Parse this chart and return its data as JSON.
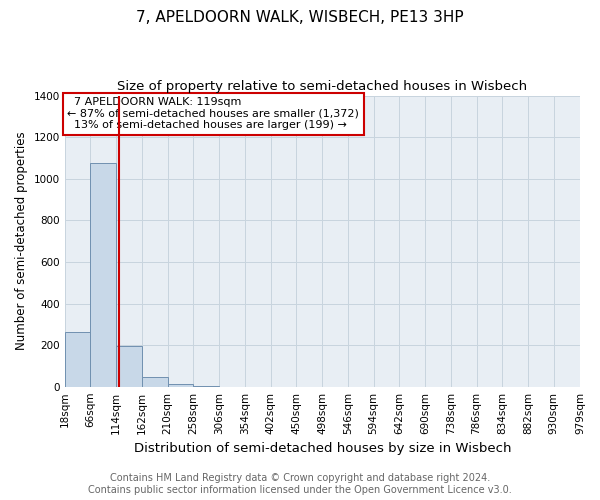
{
  "title": "7, APELDOORN WALK, WISBECH, PE13 3HP",
  "subtitle": "Size of property relative to semi-detached houses in Wisbech",
  "xlabel": "Distribution of semi-detached houses by size in Wisbech",
  "ylabel": "Number of semi-detached properties",
  "footnote1": "Contains HM Land Registry data © Crown copyright and database right 2024.",
  "footnote2": "Contains public sector information licensed under the Open Government Licence v3.0.",
  "bin_edges": [
    18,
    66,
    114,
    162,
    210,
    258,
    306,
    354,
    402,
    450,
    498,
    546,
    594,
    642,
    690,
    738,
    786,
    834,
    882,
    930,
    979
  ],
  "bar_heights": [
    265,
    1075,
    195,
    45,
    12,
    2,
    0,
    0,
    0,
    0,
    0,
    0,
    0,
    0,
    0,
    0,
    0,
    0,
    0,
    0
  ],
  "bar_color": "#c8d8e8",
  "bar_edge_color": "#7090b0",
  "property_size": 119,
  "property_label": "7 APELDOORN WALK: 119sqm",
  "pct_smaller": 87,
  "count_smaller": 1372,
  "pct_larger": 13,
  "count_larger": 199,
  "vline_color": "#cc0000",
  "annotation_box_color": "#cc0000",
  "ylim": [
    0,
    1400
  ],
  "yticks": [
    0,
    200,
    400,
    600,
    800,
    1000,
    1200,
    1400
  ],
  "background_color": "#e8eef4",
  "grid_color": "#c8d4de",
  "title_fontsize": 11,
  "subtitle_fontsize": 9.5,
  "xlabel_fontsize": 9.5,
  "ylabel_fontsize": 8.5,
  "tick_fontsize": 7.5,
  "footnote_fontsize": 7,
  "annotation_fontsize": 8
}
